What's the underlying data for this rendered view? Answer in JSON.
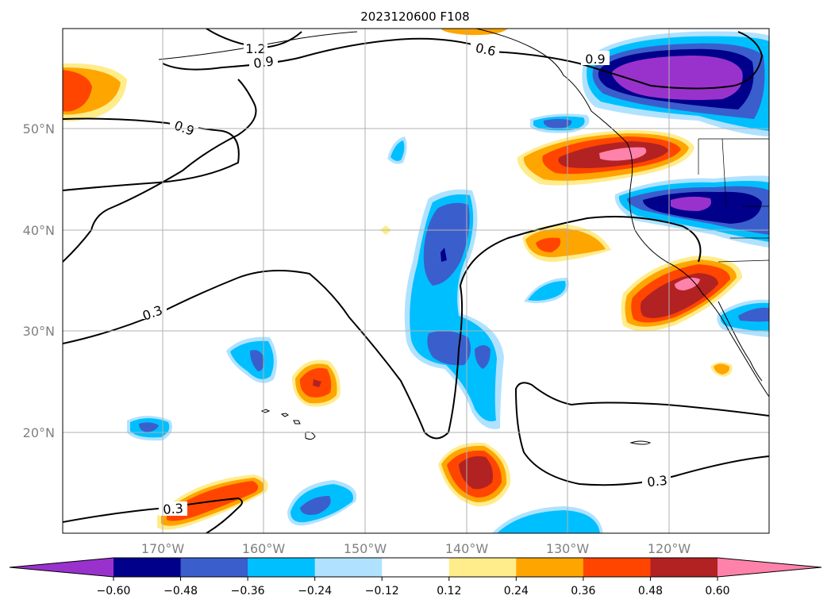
{
  "map": {
    "title": "2023120600 F108",
    "lon_labels": [
      "170°W",
      "160°W",
      "150°W",
      "140°W",
      "130°W",
      "120°W"
    ],
    "lat_labels": [
      "50°N",
      "40°N",
      "30°N",
      "20°N"
    ],
    "contour_labels": [
      "1.2",
      "0.9",
      "0.6",
      "0.9",
      "0.9",
      "0.3",
      "0.3",
      "0.3"
    ],
    "grid_color": "#b0b0b0",
    "tick_label_color": "#808080"
  },
  "colorbar": {
    "ticks": [
      "−0.60",
      "−0.48",
      "−0.36",
      "−0.24",
      "−0.12",
      "0.12",
      "0.24",
      "0.36",
      "0.48",
      "0.60"
    ],
    "colors": [
      "#9932cc",
      "#00008b",
      "#3a5fcd",
      "#00bfff",
      "#b0e2ff",
      "#ffffff",
      "#ffec8b",
      "#ffa500",
      "#ff4500",
      "#b22222",
      "#ff82ab"
    ]
  }
}
